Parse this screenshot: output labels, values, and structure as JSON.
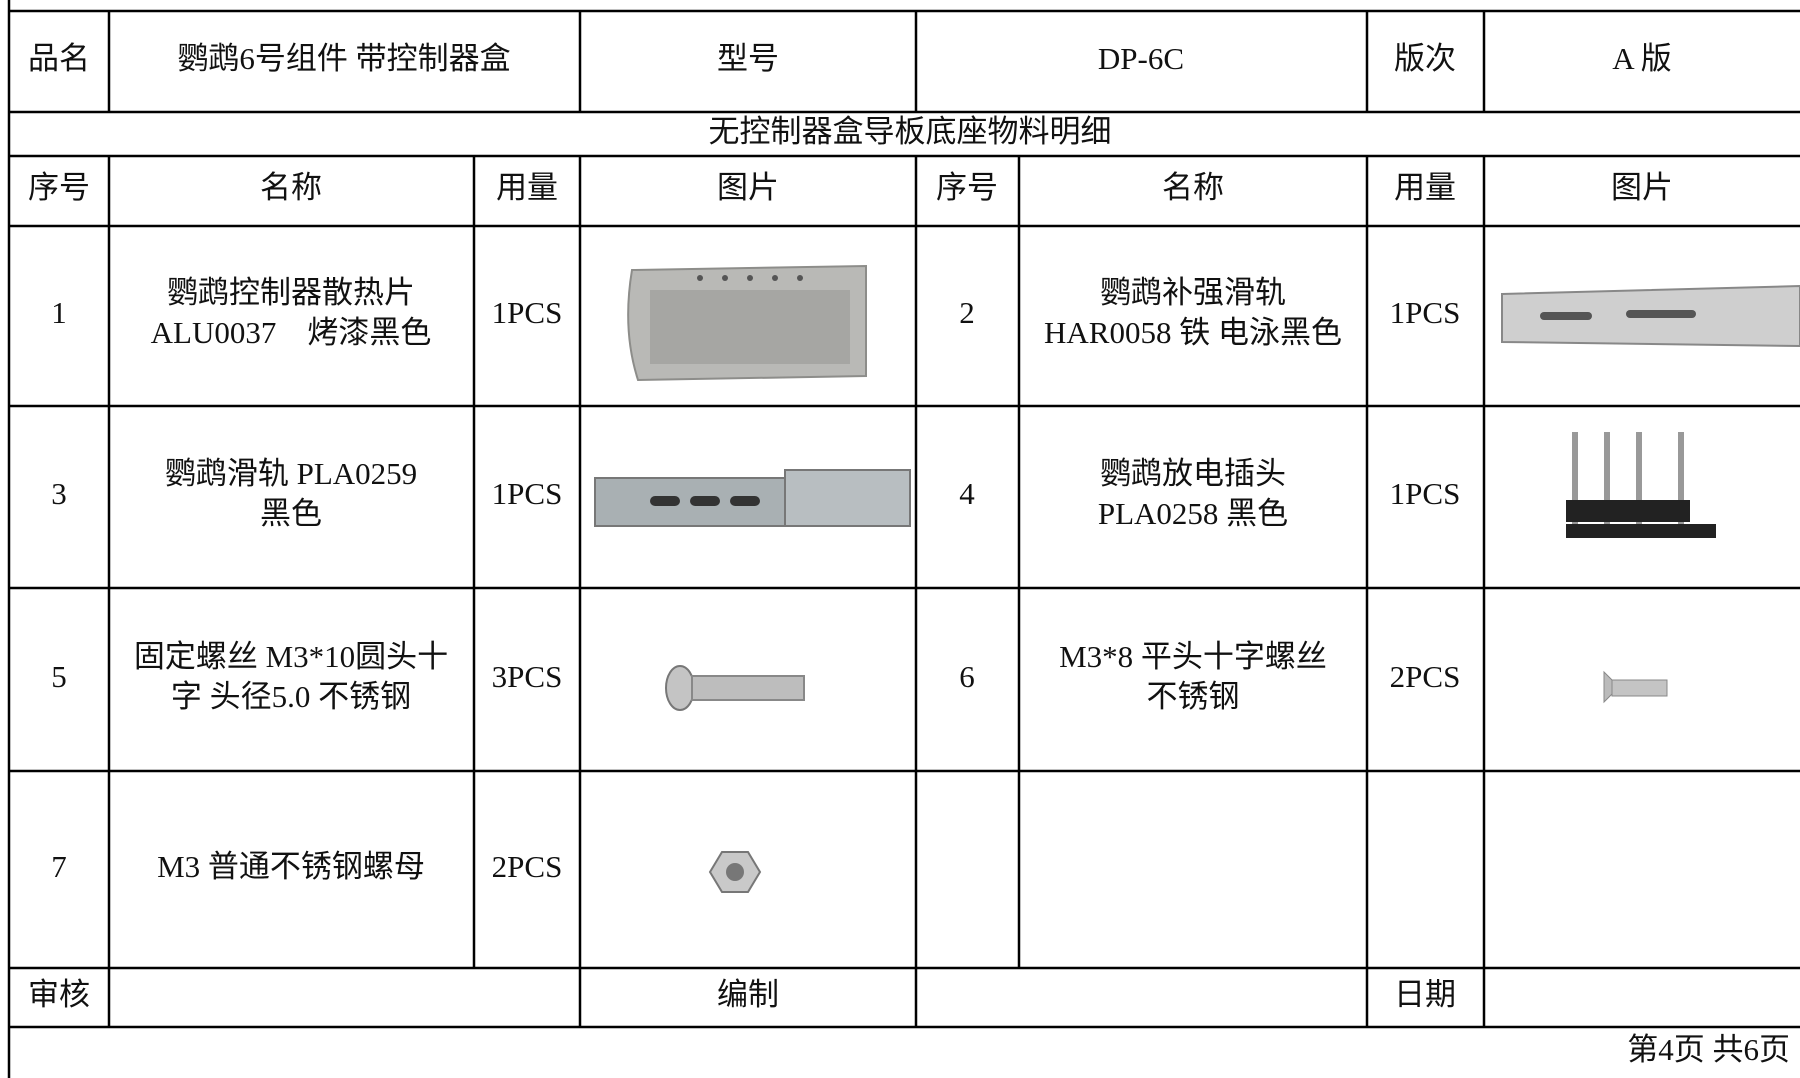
{
  "header": {
    "product_label": "品名",
    "product": "鹦鹉6号组件 带控制器盒",
    "model_label": "型号",
    "model": "DP-6C",
    "version_label": "版次",
    "version": "A 版"
  },
  "table": {
    "title": "无控制器盒导板底座物料明细",
    "columns": [
      "序号",
      "名称",
      "用量",
      "图片",
      "序号",
      "名称",
      "用量",
      "图片"
    ],
    "items": [
      {
        "no": "1",
        "name": [
          "鹦鹉控制器散热片",
          "ALU0037　烤漆黑色"
        ],
        "qty": "1PCS"
      },
      {
        "no": "2",
        "name": [
          "鹦鹉补强滑轨",
          "HAR0058 铁 电泳黑色"
        ],
        "qty": "1PCS"
      },
      {
        "no": "3",
        "name": [
          "鹦鹉滑轨 PLA0259",
          "黑色"
        ],
        "qty": "1PCS"
      },
      {
        "no": "4",
        "name": [
          "鹦鹉放电插头",
          "PLA0258 黑色"
        ],
        "qty": "1PCS"
      },
      {
        "no": "5",
        "name": [
          "固定螺丝 M3*10圆头十",
          "字 头径5.0 不锈钢"
        ],
        "qty": "3PCS"
      },
      {
        "no": "6",
        "name": [
          "M3*8 平头十字螺丝",
          "不锈钢"
        ],
        "qty": "2PCS"
      },
      {
        "no": "7",
        "name": [
          "M3 普通不锈钢螺母"
        ],
        "qty": "2PCS"
      }
    ]
  },
  "footer": {
    "review": "审核",
    "compile": "编制",
    "date": "日期",
    "page": "第4页 共6页"
  }
}
